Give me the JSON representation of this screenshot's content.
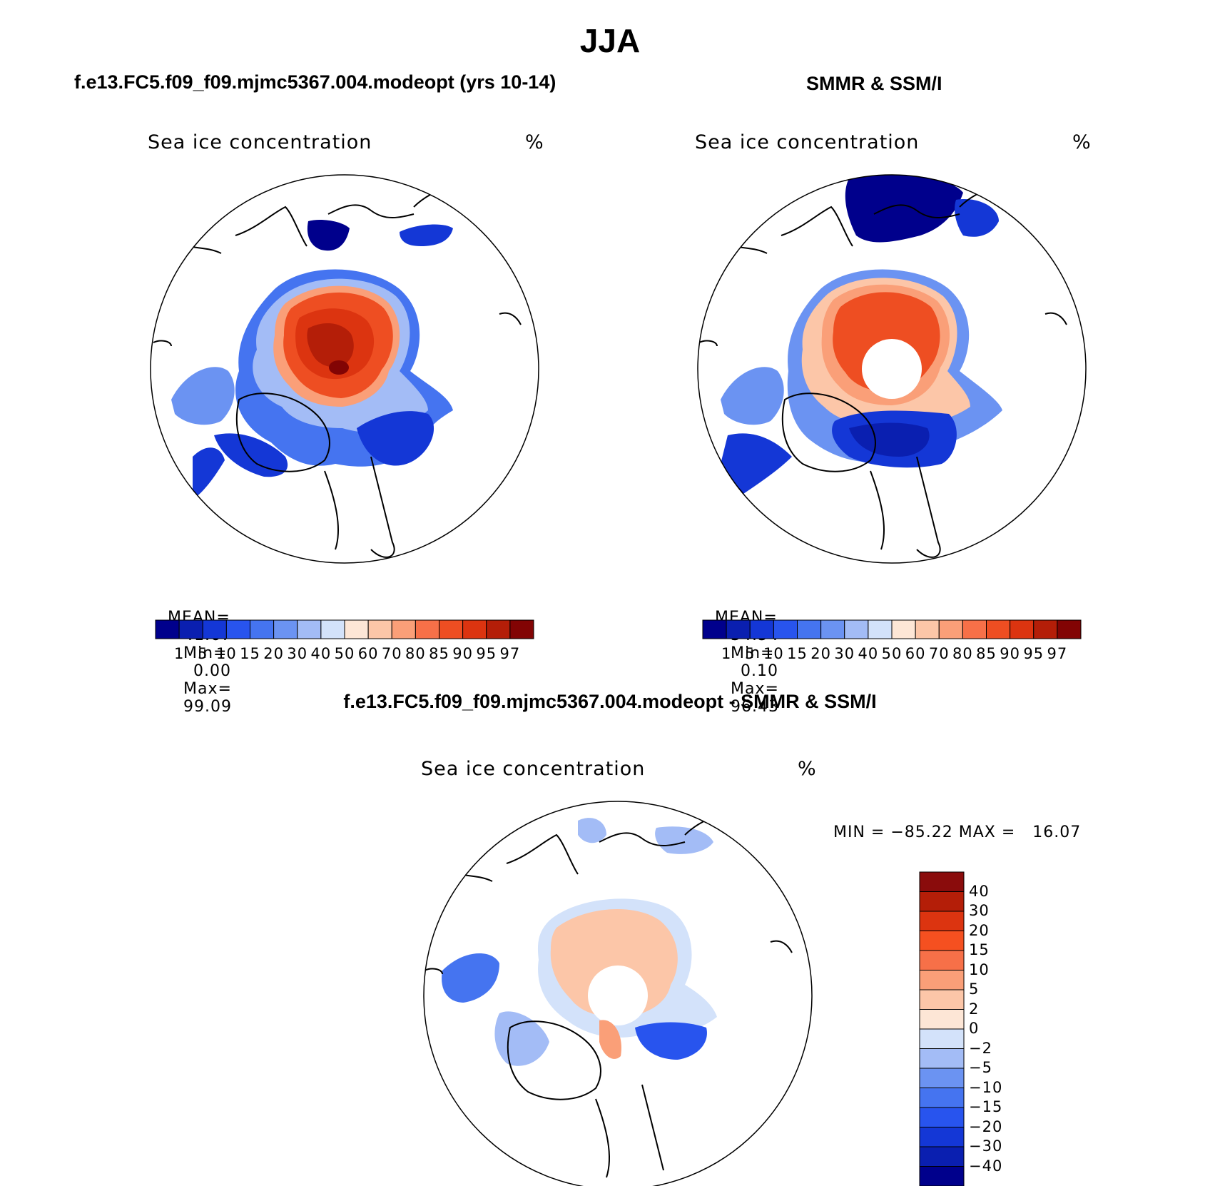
{
  "title": "JJA",
  "panels": [
    {
      "id": "model",
      "heading": "f.e13.FC5.f09_f09.mjmc5367.004.modeopt (yrs 10-14)",
      "subtitle": "Sea ice concentration",
      "unit": "%",
      "stats": {
        "mean_label": "MEAN=",
        "mean": "41.67",
        "min_label": "Min=",
        "min": "0.00",
        "max_label": "Max=",
        "max": "99.09"
      }
    },
    {
      "id": "obs",
      "heading": "SMMR & SSM/I",
      "subtitle": "Sea ice concentration",
      "unit": "%",
      "stats": {
        "mean_label": "MEAN=",
        "mean": "34.54",
        "min_label": "Min=",
        "min": "0.10",
        "max_label": "Max=",
        "max": "96.43"
      }
    },
    {
      "id": "diff",
      "heading": "f.e13.FC5.f09_f09.mjmc5367.004.modeopt - SMMR & SSM/I",
      "subtitle": "Sea ice concentration",
      "unit": "%",
      "minmax": "MIN = −85.22 MAX =   16.07"
    }
  ],
  "colorbar_concentration": {
    "labels": [
      "1",
      "5",
      "10",
      "15",
      "20",
      "30",
      "40",
      "50",
      "60",
      "70",
      "80",
      "85",
      "90",
      "95",
      "97"
    ],
    "colors": [
      "#00008c",
      "#0a1fb0",
      "#1437d6",
      "#2854ee",
      "#4574f0",
      "#6b93f2",
      "#a3bcf6",
      "#d3e2fa",
      "#fde6d6",
      "#fcc6a8",
      "#fa9f78",
      "#f77048",
      "#ee4e22",
      "#dc3410",
      "#b41e08",
      "#820404"
    ]
  },
  "colorbar_difference": {
    "labels": [
      "40",
      "30",
      "20",
      "15",
      "10",
      "5",
      "2",
      "0",
      "−2",
      "−5",
      "−10",
      "−15",
      "−20",
      "−30",
      "−40"
    ],
    "colors": [
      "#8a0c0c",
      "#b41e08",
      "#dc3410",
      "#f55020",
      "#f77048",
      "#fa9f78",
      "#fcc6a8",
      "#fde6d6",
      "#d3e2fa",
      "#a3bcf6",
      "#6b93f2",
      "#4574f0",
      "#2854ee",
      "#1437d6",
      "#0a1fb0",
      "#00008c"
    ]
  }
}
